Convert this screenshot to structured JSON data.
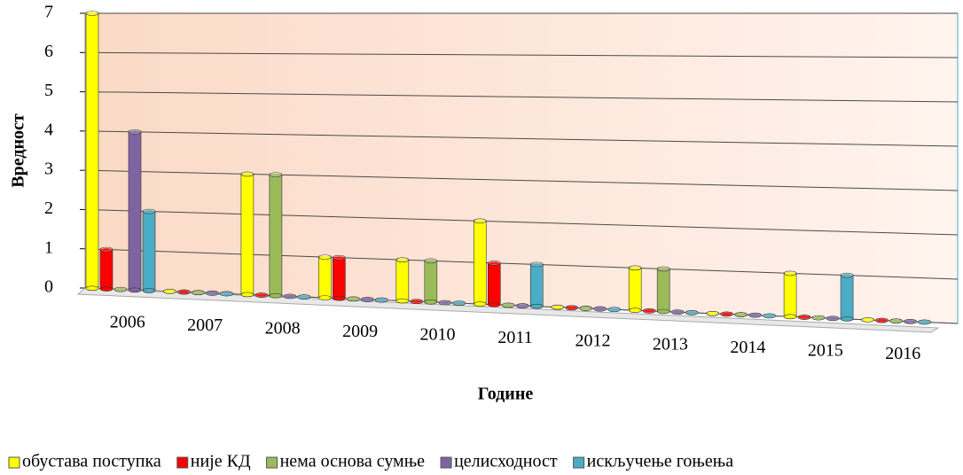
{
  "chart_data": {
    "type": "bar3d",
    "x_label": "Године",
    "y_label": "Вредност",
    "categories": [
      "2006",
      "2007",
      "2008",
      "2009",
      "2010",
      "2011",
      "2012",
      "2013",
      "2014",
      "2015",
      "2016"
    ],
    "series": [
      {
        "name": "обустава поступка",
        "color": "#ffff00",
        "values": [
          7,
          0,
          3,
          1,
          1,
          2,
          0,
          1,
          0,
          1,
          0
        ]
      },
      {
        "name": "није КД",
        "color": "#ff0000",
        "values": [
          1,
          0,
          0,
          1,
          0,
          1,
          0,
          0,
          0,
          0,
          0
        ]
      },
      {
        "name": "нема основа сумње",
        "color": "#9bbb59",
        "values": [
          0,
          0,
          3,
          0,
          1,
          0,
          0,
          1,
          0,
          0,
          0
        ]
      },
      {
        "name": "целисходност",
        "color": "#8064a2",
        "values": [
          4,
          0,
          0,
          0,
          0,
          0,
          0,
          0,
          0,
          0,
          0
        ]
      },
      {
        "name": "искључење гоњења",
        "color": "#4bacc6",
        "values": [
          2,
          0,
          0,
          0,
          0,
          1,
          0,
          0,
          0,
          1,
          0
        ]
      }
    ],
    "ylim": [
      0,
      7
    ],
    "yticks": [
      0,
      1,
      2,
      3,
      4,
      5,
      6,
      7
    ],
    "grid": true,
    "legend": "bottom"
  }
}
